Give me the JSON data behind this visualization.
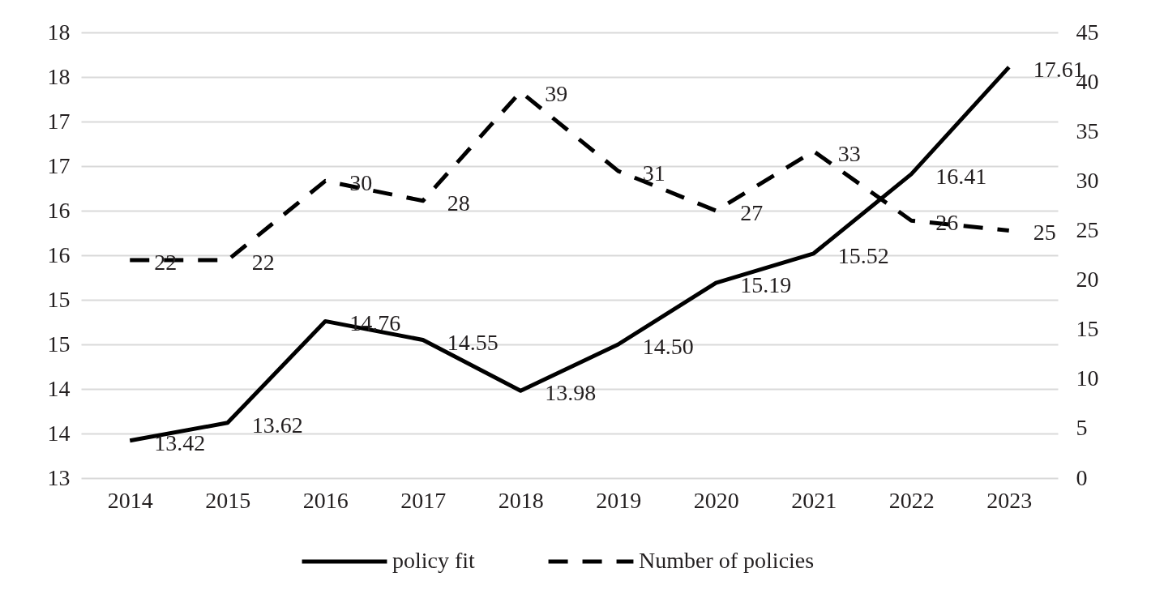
{
  "chart_data": {
    "type": "line",
    "categories": [
      "2014",
      "2015",
      "2016",
      "2017",
      "2018",
      "2019",
      "2020",
      "2021",
      "2022",
      "2023"
    ],
    "series": [
      {
        "name": "policy fit",
        "color": "#000000",
        "line_style": "solid",
        "values": [
          13.42,
          13.62,
          14.76,
          14.55,
          13.98,
          14.5,
          15.19,
          15.52,
          16.41,
          17.61
        ],
        "value_labels": [
          "13.42",
          "13.62",
          "14.76",
          "14.55",
          "13.98",
          "14.50",
          "15.19",
          "15.52",
          "16.41",
          "17.61"
        ]
      },
      {
        "name": "Number of policies",
        "color": "#000000",
        "line_style": "dashed",
        "axis": "y2",
        "values": [
          22,
          22,
          30,
          28,
          39,
          31,
          27,
          33,
          26,
          25
        ],
        "value_labels": [
          "22",
          "22",
          "30",
          "28",
          "39",
          "31",
          "27",
          "33",
          "26",
          "25"
        ]
      }
    ],
    "ylim": [
      13,
      18
    ],
    "yticks": [
      13,
      {
        "value": 13.5,
        "label": "14"
      },
      14,
      {
        "value": 14.5,
        "label": "15"
      },
      15,
      {
        "value": 15.5,
        "label": "16"
      },
      16,
      {
        "value": 16.5,
        "label": "17"
      },
      17,
      {
        "value": 17.5,
        "label": "18"
      },
      18
    ],
    "y2lim": [
      0,
      45
    ],
    "y2ticks": [
      0,
      5,
      10,
      15,
      20,
      25,
      30,
      35,
      40,
      45
    ],
    "grid": "y",
    "legend": "bottom"
  }
}
